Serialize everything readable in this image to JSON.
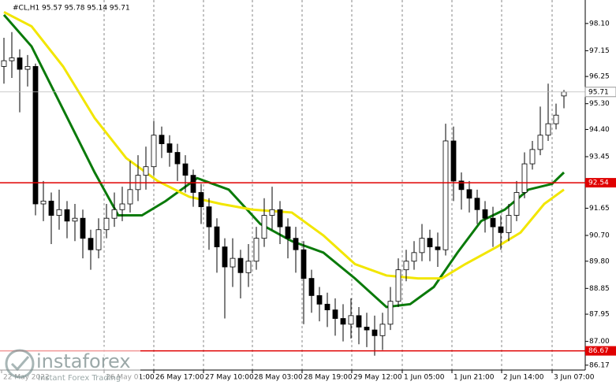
{
  "chart_data": {
    "type": "candlestick",
    "title": "#CL,H1  95.57 95.78 95.14 95.71",
    "open": [
      96.6,
      96.8,
      96.9,
      96.5,
      96.6,
      91.8,
      91.9,
      91.4,
      91.6,
      91.2,
      91.3,
      90.6,
      90.2,
      90.9,
      91.3,
      91.6,
      91.8,
      92.3,
      92.8,
      93.1,
      94.2,
      93.9,
      93.6,
      93.2,
      92.8,
      92.2,
      91.7,
      91.0,
      90.3,
      89.6,
      89.9,
      89.4,
      89.8,
      90.6,
      91.4,
      91.6,
      91.0,
      90.6,
      90.2,
      89.2,
      88.6,
      88.3,
      88.1,
      87.8,
      87.6,
      87.9,
      87.5,
      87.4,
      87.2,
      87.6,
      88.4,
      89.5,
      89.8,
      90.1,
      90.6,
      90.3,
      90.2,
      94.0,
      92.6,
      92.3,
      92.0,
      91.6,
      91.3,
      91.0,
      90.8,
      91.4,
      92.2,
      93.2,
      93.7,
      94.2,
      94.6,
      95.57
    ],
    "high": [
      97.6,
      97.8,
      97.2,
      97.0,
      96.7,
      92.6,
      92.2,
      92.3,
      91.9,
      91.8,
      91.6,
      90.9,
      91.3,
      91.8,
      92.2,
      92.4,
      93.3,
      93.5,
      93.8,
      94.7,
      94.5,
      94.2,
      93.9,
      93.5,
      93.0,
      92.5,
      92.0,
      91.3,
      90.6,
      90.6,
      90.2,
      90.4,
      91.0,
      92.0,
      92.4,
      91.9,
      91.3,
      91.0,
      90.5,
      89.5,
      88.9,
      88.7,
      88.5,
      88.3,
      88.5,
      88.2,
      88.0,
      87.9,
      88.0,
      88.9,
      89.9,
      90.2,
      90.5,
      91.1,
      90.9,
      90.8,
      94.6,
      94.5,
      92.9,
      92.6,
      92.3,
      91.9,
      91.7,
      91.4,
      91.8,
      92.6,
      93.6,
      94.0,
      95.2,
      96.0,
      95.3,
      95.78
    ],
    "low": [
      96.0,
      96.2,
      95.0,
      95.9,
      91.4,
      91.2,
      90.4,
      90.9,
      90.6,
      90.5,
      89.9,
      89.5,
      89.9,
      90.6,
      91.0,
      91.2,
      91.5,
      91.9,
      92.3,
      92.8,
      93.4,
      93.1,
      92.6,
      92.2,
      91.7,
      91.1,
      90.2,
      89.4,
      87.8,
      88.9,
      88.5,
      88.9,
      89.5,
      90.3,
      90.9,
      90.4,
      89.9,
      89.4,
      87.6,
      88.0,
      87.7,
      87.5,
      87.2,
      87.0,
      87.1,
      86.9,
      86.8,
      86.5,
      86.7,
      87.4,
      88.2,
      89.1,
      89.5,
      89.8,
      89.8,
      89.6,
      90.0,
      91.9,
      91.6,
      91.5,
      91.1,
      90.8,
      90.3,
      90.2,
      90.5,
      91.2,
      92.0,
      93.0,
      93.5,
      94.0,
      94.4,
      95.14
    ],
    "close": [
      96.8,
      96.9,
      96.5,
      96.6,
      91.8,
      91.9,
      91.4,
      91.6,
      91.2,
      91.3,
      90.6,
      90.2,
      90.9,
      91.3,
      91.6,
      91.8,
      92.3,
      92.8,
      93.1,
      94.2,
      93.9,
      93.6,
      93.2,
      92.8,
      92.2,
      91.7,
      91.0,
      90.3,
      89.6,
      89.9,
      89.4,
      89.8,
      90.6,
      91.4,
      91.6,
      91.0,
      90.6,
      90.2,
      89.2,
      88.6,
      88.3,
      88.1,
      87.8,
      87.6,
      87.9,
      87.5,
      87.4,
      87.2,
      87.6,
      88.4,
      89.5,
      89.8,
      90.1,
      90.6,
      90.3,
      90.2,
      94.0,
      92.6,
      92.3,
      92.0,
      91.6,
      91.3,
      91.0,
      90.8,
      91.4,
      92.2,
      93.2,
      93.7,
      94.2,
      94.6,
      94.9,
      95.71
    ],
    "up_color": "#ffffff",
    "down_color": "#000000",
    "series": [
      {
        "color": "#0a7a0a",
        "x": [
          0,
          3.5,
          7.5,
          11.5,
          14.5,
          17.5,
          20.5,
          24.5,
          28.5,
          32.5,
          36.5,
          40.5,
          44.5,
          48.5,
          51.5,
          54.5,
          57.5,
          60.5,
          63.5,
          66.5,
          69.5,
          71
        ],
        "values": [
          98.4,
          97.3,
          95.1,
          92.9,
          91.4,
          91.4,
          91.9,
          92.7,
          92.3,
          91.1,
          90.5,
          90.1,
          89.2,
          88.2,
          88.3,
          88.9,
          90.1,
          91.2,
          91.6,
          92.3,
          92.5,
          92.9
        ]
      },
      {
        "color": "#f2e600",
        "x": [
          0,
          3.5,
          7.5,
          11.5,
          15.5,
          19.5,
          23.5,
          27.5,
          31.5,
          36.5,
          40.5,
          44.5,
          48.5,
          52.5,
          55.5,
          58.5,
          62.5,
          65.5,
          68.5,
          71
        ],
        "values": [
          98.5,
          98.0,
          96.6,
          94.8,
          93.4,
          92.6,
          92.05,
          91.8,
          91.6,
          91.5,
          90.7,
          89.7,
          89.3,
          89.2,
          89.2,
          89.7,
          90.3,
          90.8,
          91.8,
          92.3
        ]
      }
    ],
    "levels": [
      92.54,
      86.67
    ],
    "level_color": "#e00000",
    "xlim": [
      -0.5,
      73.7
    ],
    "xticks": [
      {
        "value": -0.3,
        "label": "22 May 2022"
      },
      {
        "value": 12.7,
        "label": "26 May 01:00"
      },
      {
        "value": 19,
        "label": "26 May 17:00"
      },
      {
        "value": 25.3,
        "label": "27 May 10:00"
      },
      {
        "value": 31.5,
        "label": "28 May 03:00"
      },
      {
        "value": 37.8,
        "label": "28 May 19:00"
      },
      {
        "value": 44.1,
        "label": "29 May 12:00"
      },
      {
        "value": 50.5,
        "label": "1 Jun 05:00"
      },
      {
        "value": 56.8,
        "label": "1 Jun 21:00"
      },
      {
        "value": 63.1,
        "label": "2 Jun 14:00"
      },
      {
        "value": 69.5,
        "label": "3 Jun 07:00"
      }
    ],
    "ylim": [
      86.0,
      98.92
    ],
    "yticks": [
      {
        "value": 98.1,
        "label": "98.10"
      },
      97.15,
      96.25,
      {
        "value": 95.3,
        "label": "95.30"
      },
      {
        "value": 94.4,
        "label": "94.40"
      },
      93.45,
      91.65,
      {
        "value": 90.7,
        "label": "90.70"
      },
      {
        "value": 89.8,
        "label": "89.80"
      },
      88.85,
      87.95,
      {
        "value": 87,
        "label": "87.00"
      },
      86.17
    ],
    "grid": "vertical"
  },
  "watermark": {
    "name": "instaforex",
    "tagline": "Instant Forex Trading"
  }
}
